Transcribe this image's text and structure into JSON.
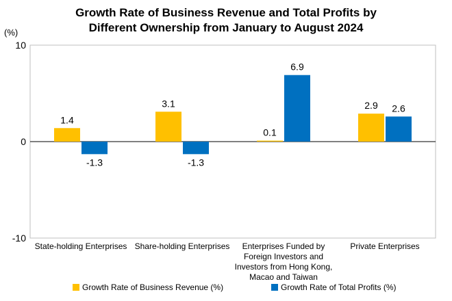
{
  "chart_data": {
    "type": "bar",
    "title_lines": [
      "Growth Rate of Business Revenue and Total Profits by",
      "Different Ownership from January to August 2024"
    ],
    "ylabel": "(%)",
    "ylim": [
      -10,
      10
    ],
    "yticks": [
      10,
      0,
      -10
    ],
    "categories": [
      [
        "State-holding Enterprises"
      ],
      [
        "Share-holding Enterprises"
      ],
      [
        "Enterprises Funded by",
        "Foreign Investors and",
        "Investors from Hong Kong,",
        "Macao and Taiwan"
      ],
      [
        "Private Enterprises"
      ]
    ],
    "series": [
      {
        "name": "Growth Rate of Business Revenue (%)",
        "color": "#FFC000",
        "values": [
          1.4,
          3.1,
          0.1,
          2.9
        ]
      },
      {
        "name": "Growth Rate of Total Profits (%)",
        "color": "#0070C0",
        "values": [
          -1.3,
          -1.3,
          6.9,
          2.6
        ]
      }
    ],
    "legend_position": "bottom",
    "grid": false
  }
}
